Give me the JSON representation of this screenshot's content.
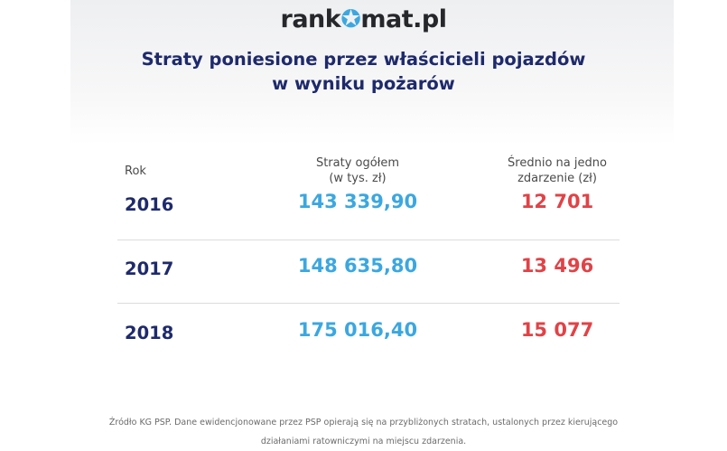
{
  "logo": {
    "part1": "rank",
    "star": "✪",
    "part2": "mat.pl"
  },
  "title": {
    "line1": "Straty poniesione przez właścicieli pojazdów",
    "line2": "w wyniku pożarów"
  },
  "table": {
    "headers": {
      "year": "Rok",
      "total_line1": "Straty ogółem",
      "total_line2": "(w tys. zł)",
      "avg_line1": "Średnio na jedno",
      "avg_line2": "zdarzenie (zł)"
    },
    "rows": [
      {
        "year": "2016",
        "total": "143 339,90",
        "avg": "12 701"
      },
      {
        "year": "2017",
        "total": "148 635,80",
        "avg": "13 496"
      },
      {
        "year": "2018",
        "total": "175 016,40",
        "avg": "15 077"
      }
    ]
  },
  "footer": {
    "line1": "Źródło KG PSP. Dane ewidencjonowane przez PSP opierają się na przybliżonych stratach, ustalonych przez kierującego",
    "line2": "działaniami ratowniczymi na miejscu zdarzenia."
  },
  "colors": {
    "navy": "#1e2a6b",
    "blue": "#3ba7e0",
    "red": "#e04347"
  }
}
